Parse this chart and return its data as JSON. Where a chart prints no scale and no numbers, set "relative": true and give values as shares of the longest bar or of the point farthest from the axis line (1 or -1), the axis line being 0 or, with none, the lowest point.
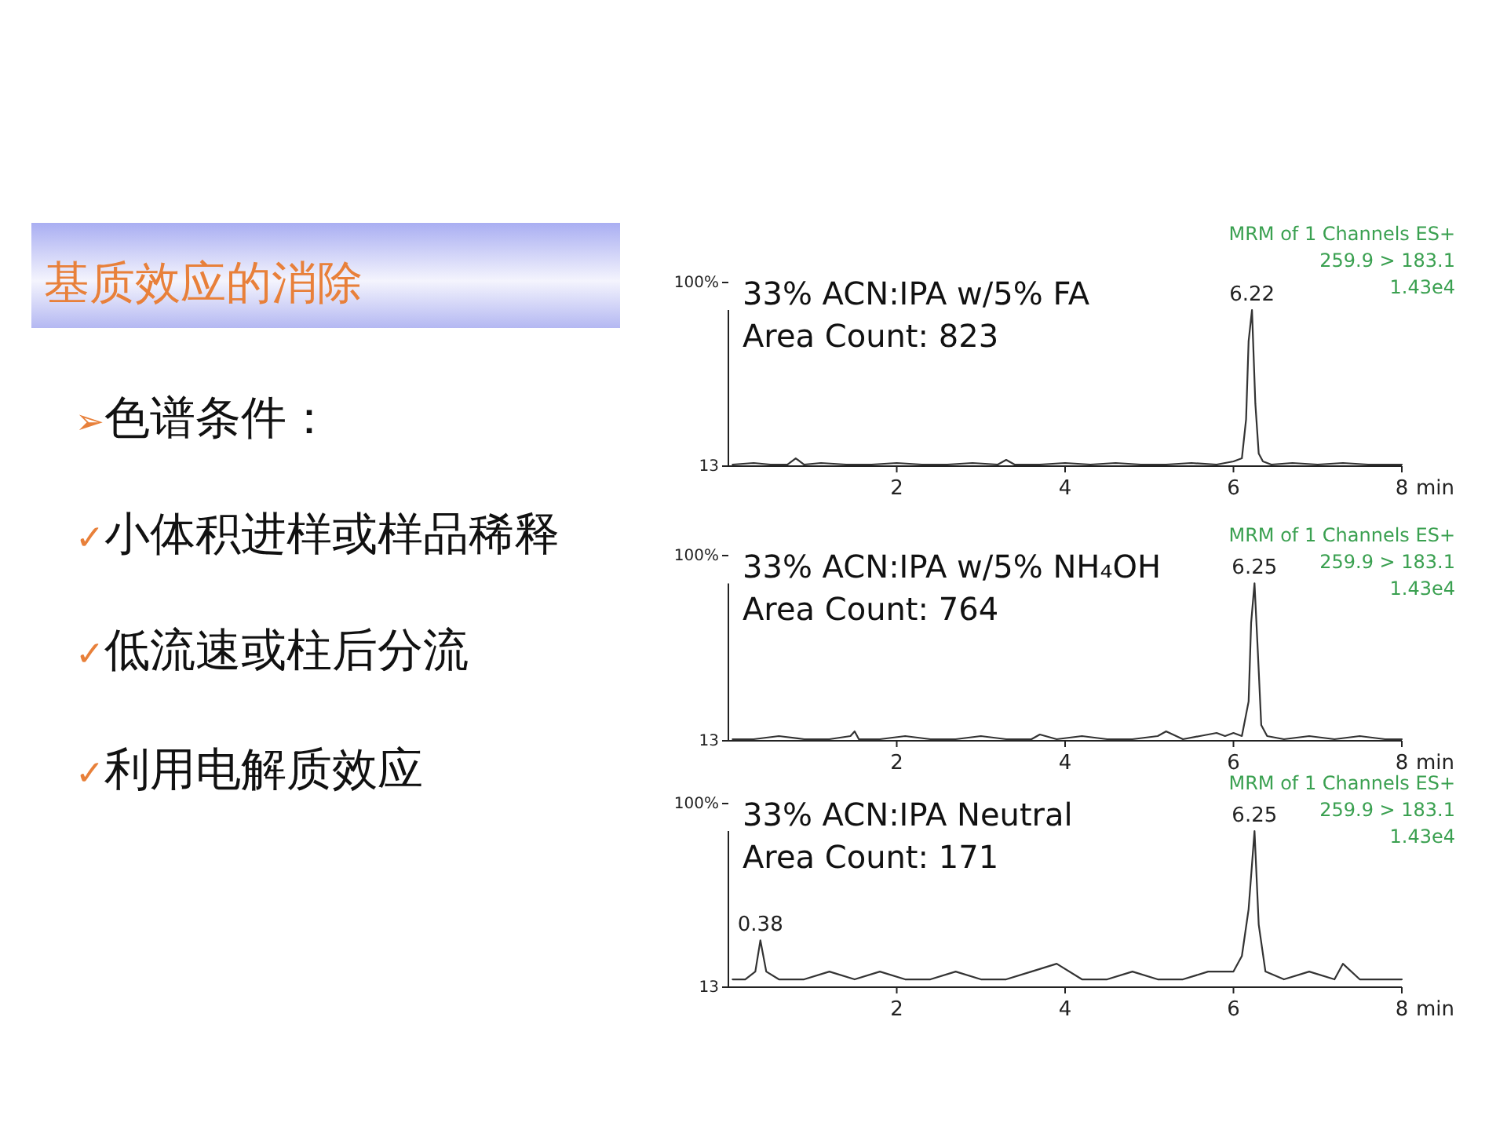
{
  "chart_data": [
    {
      "type": "other",
      "title": "基质效应的消除",
      "annotations": [
        "➢色谱条件：",
        "✓小体积进样或样品稀释",
        "✓低流速或柱后分流",
        "✓利用电解质效应"
      ]
    },
    {
      "type": "line",
      "relative": true,
      "title": "33% ACN:IPA w/5% FA",
      "subtitle": "Area Count: 823",
      "xlim": [
        0,
        8
      ],
      "xticks": [
        2,
        4,
        6,
        8
      ],
      "xlabel": "min",
      "series": [
        {
          "color": "#333333",
          "x": [
            0.05,
            0.3,
            0.5,
            0.7,
            0.8,
            0.9,
            1.1,
            1.4,
            1.7,
            2.0,
            2.3,
            2.6,
            2.9,
            3.2,
            3.3,
            3.4,
            3.7,
            4.0,
            4.3,
            4.6,
            4.9,
            5.2,
            5.5,
            5.8,
            6.0,
            6.1,
            6.15,
            6.18,
            6.22,
            6.26,
            6.3,
            6.35,
            6.45,
            6.7,
            7.0,
            7.3,
            7.6,
            8.0
          ],
          "values": [
            0.01,
            0.02,
            0.01,
            0.01,
            0.05,
            0.01,
            0.02,
            0.01,
            0.01,
            0.02,
            0.01,
            0.01,
            0.02,
            0.01,
            0.04,
            0.01,
            0.01,
            0.02,
            0.01,
            0.02,
            0.01,
            0.01,
            0.02,
            0.01,
            0.03,
            0.05,
            0.3,
            0.8,
            1,
            0.4,
            0.08,
            0.03,
            0.01,
            0.02,
            0.01,
            0.02,
            0.01,
            0.01
          ]
        }
      ],
      "annotations": [
        "100%",
        "13",
        {
          "text": "6.22",
          "x": 6.22,
          "y": 1
        },
        "MRM of 1 Channels ES+",
        "259.9 > 183.1",
        "1.43e4"
      ]
    },
    {
      "type": "line",
      "relative": true,
      "title": "33% ACN:IPA w/5% NH₄OH",
      "subtitle": "Area Count: 764",
      "xlim": [
        0,
        8
      ],
      "xticks": [
        2,
        4,
        6,
        8
      ],
      "xlabel": "min",
      "series": [
        {
          "color": "#333333",
          "x": [
            0.05,
            0.3,
            0.6,
            0.9,
            1.2,
            1.45,
            1.5,
            1.55,
            1.8,
            2.1,
            2.4,
            2.7,
            3.0,
            3.3,
            3.6,
            3.7,
            3.9,
            4.2,
            4.5,
            4.8,
            5.1,
            5.2,
            5.4,
            5.6,
            5.8,
            5.9,
            6.0,
            6.1,
            6.18,
            6.21,
            6.25,
            6.29,
            6.33,
            6.4,
            6.6,
            6.9,
            7.2,
            7.5,
            7.8,
            8.0
          ],
          "values": [
            0.01,
            0.01,
            0.03,
            0.01,
            0.01,
            0.03,
            0.06,
            0.01,
            0.01,
            0.03,
            0.01,
            0.01,
            0.03,
            0.01,
            0.01,
            0.04,
            0.01,
            0.03,
            0.01,
            0.01,
            0.03,
            0.06,
            0.01,
            0.03,
            0.05,
            0.03,
            0.05,
            0.03,
            0.25,
            0.75,
            1,
            0.56,
            0.1,
            0.03,
            0.01,
            0.03,
            0.01,
            0.03,
            0.01,
            0.01
          ]
        }
      ],
      "annotations": [
        "100%",
        "13",
        {
          "text": "6.25",
          "x": 6.25,
          "y": 1
        },
        "MRM of 1 Channels ES+",
        "259.9 > 183.1",
        "1.43e4"
      ]
    },
    {
      "type": "line",
      "relative": true,
      "title": "33% ACN:IPA Neutral",
      "subtitle": "Area Count: 171",
      "xlim": [
        0,
        8
      ],
      "xticks": [
        2,
        4,
        6,
        8
      ],
      "xlabel": "min",
      "series": [
        {
          "color": "#333333",
          "x": [
            0.05,
            0.2,
            0.32,
            0.38,
            0.45,
            0.6,
            0.9,
            1.2,
            1.5,
            1.8,
            2.1,
            2.4,
            2.7,
            3.0,
            3.3,
            3.6,
            3.9,
            4.2,
            4.5,
            4.8,
            5.1,
            5.4,
            5.7,
            6.0,
            6.1,
            6.18,
            6.25,
            6.3,
            6.38,
            6.6,
            6.9,
            7.2,
            7.3,
            7.5,
            7.8,
            8.0
          ],
          "values": [
            0.05,
            0.05,
            0.1,
            0.3,
            0.1,
            0.05,
            0.05,
            0.1,
            0.05,
            0.1,
            0.05,
            0.05,
            0.1,
            0.05,
            0.05,
            0.1,
            0.15,
            0.05,
            0.05,
            0.1,
            0.05,
            0.05,
            0.1,
            0.1,
            0.2,
            0.5,
            1,
            0.4,
            0.1,
            0.05,
            0.1,
            0.05,
            0.15,
            0.05,
            0.05,
            0.05
          ]
        }
      ],
      "annotations": [
        "100%",
        "13",
        {
          "text": "0.38",
          "x": 0.38,
          "y": 0.3
        },
        {
          "text": "6.25",
          "x": 6.25,
          "y": 1
        },
        "MRM of 1 Channels ES+",
        "259.9 > 183.1",
        "1.43e4"
      ]
    }
  ]
}
